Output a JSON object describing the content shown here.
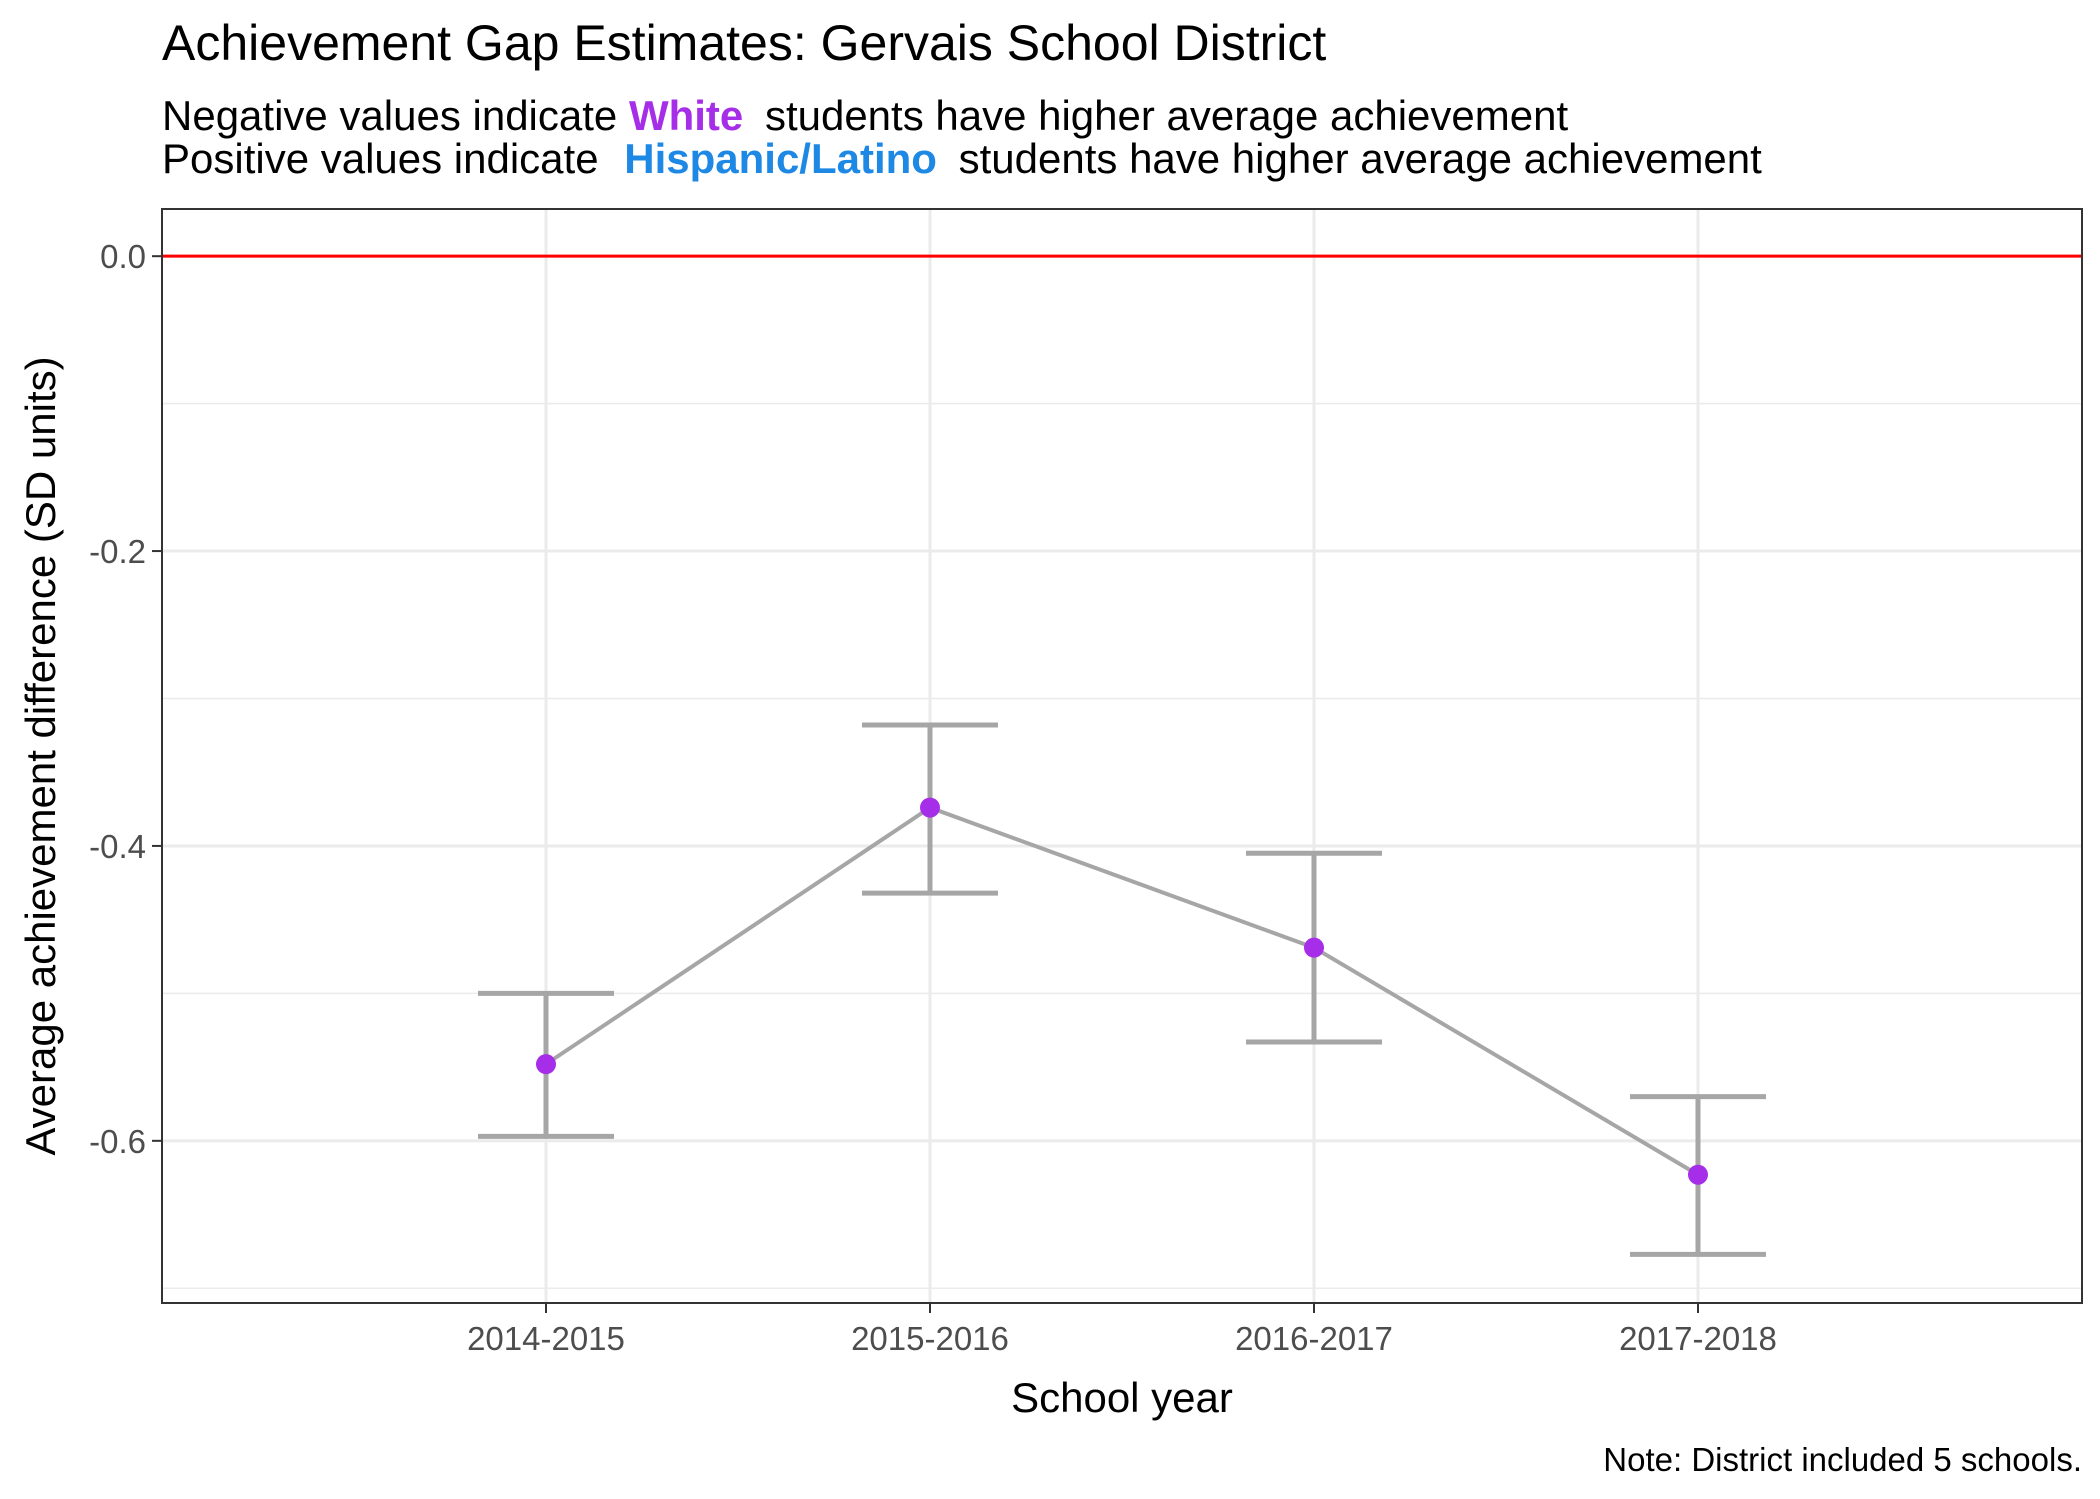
{
  "chart_data": {
    "type": "line",
    "title": "Achievement Gap Estimates: Gervais School District",
    "subtitle": {
      "line1": {
        "prefix": "Negative values indicate",
        "highlight": "White",
        "suffix": "students have higher average achievement"
      },
      "line2": {
        "prefix": "Positive values indicate",
        "highlight": "Hispanic/Latino",
        "suffix": "students have higher average achievement"
      }
    },
    "xlabel": "School year",
    "ylabel": "Average achievement difference (SD units)",
    "caption": "Note: District included 5 schools.",
    "categories": [
      "2014-2015",
      "2015-2016",
      "2016-2017",
      "2017-2018"
    ],
    "values": [
      -0.548,
      -0.374,
      -0.469,
      -0.623
    ],
    "error_low": [
      -0.597,
      -0.432,
      -0.533,
      -0.677
    ],
    "error_high": [
      -0.5,
      -0.318,
      -0.405,
      -0.57
    ],
    "y_ticks": [
      0.0,
      -0.2,
      -0.4,
      -0.6
    ],
    "y_tick_labels": [
      "0.0",
      "-0.2",
      "-0.4",
      "-0.6"
    ],
    "ylim": [
      -0.71,
      0.032
    ],
    "reference_line": 0.0,
    "grid": true,
    "colors": {
      "point": "#A62EE8",
      "line": "#A6A6A6",
      "reference": "#FF0000",
      "white_highlight": "#A62EE8",
      "hispanic_highlight": "#1E88E5",
      "grid": "#EBEBEB"
    }
  }
}
